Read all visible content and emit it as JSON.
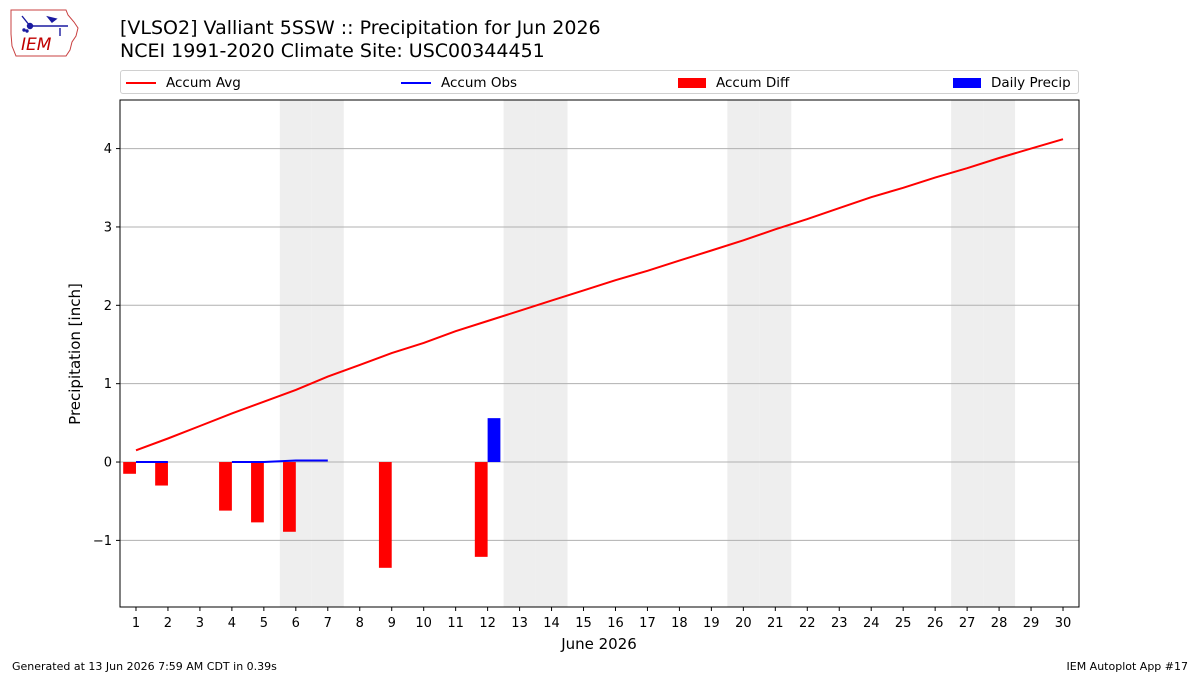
{
  "header": {
    "title_line1": "[VLSO2] Valliant 5SSW :: Precipitation for Jun 2026",
    "title_line2": "NCEI 1991-2020 Climate Site: USC00344451",
    "logo_text": "IEM"
  },
  "footer": {
    "generated": "Generated at 13 Jun 2026 7:59 AM CDT in 0.39s",
    "app": "IEM Autoplot App #17"
  },
  "colors": {
    "avg": "#ff0000",
    "obs": "#0000ff",
    "diff": "#ff0000",
    "daily": "#0000ff",
    "weekend": "#eeeeee",
    "grid": "#b0b0b0"
  },
  "chart_data": {
    "type": "bar",
    "xlabel": "June 2026",
    "ylabel": "Precipitation [inch]",
    "xlim": [
      0.5,
      30.5
    ],
    "ylim": [
      -1.85,
      4.62
    ],
    "yticks": [
      -1,
      0,
      1,
      2,
      3,
      4
    ],
    "ytick_labels": [
      "−1",
      "0",
      "1",
      "2",
      "3",
      "4"
    ],
    "x": [
      1,
      2,
      3,
      4,
      5,
      6,
      7,
      8,
      9,
      10,
      11,
      12,
      13,
      14,
      15,
      16,
      17,
      18,
      19,
      20,
      21,
      22,
      23,
      24,
      25,
      26,
      27,
      28,
      29,
      30
    ],
    "weekend_days": [
      6,
      7,
      13,
      14,
      20,
      21,
      27,
      28
    ],
    "grid": "horizontal",
    "legend_position": "top",
    "series": [
      {
        "name": "Accum Avg",
        "kind": "line",
        "x": [
          1,
          2,
          3,
          4,
          5,
          6,
          7,
          8,
          9,
          10,
          11,
          12,
          13,
          14,
          15,
          16,
          17,
          18,
          19,
          20,
          21,
          22,
          23,
          24,
          25,
          26,
          27,
          28,
          29,
          30
        ],
        "values": [
          0.15,
          0.3,
          0.46,
          0.62,
          0.77,
          0.92,
          1.09,
          1.24,
          1.39,
          1.52,
          1.67,
          1.8,
          1.93,
          2.06,
          2.19,
          2.32,
          2.44,
          2.57,
          2.7,
          2.83,
          2.97,
          3.1,
          3.24,
          3.38,
          3.5,
          3.63,
          3.75,
          3.88,
          4.0,
          4.12
        ]
      },
      {
        "name": "Accum Obs",
        "kind": "line",
        "x": [
          1,
          2,
          3,
          4,
          5,
          6,
          7,
          8,
          9,
          10,
          11,
          12
        ],
        "values": [
          0.0,
          0.0,
          null,
          0.0,
          0.0,
          0.02,
          0.02,
          null,
          null,
          null,
          null,
          null
        ]
      },
      {
        "name": "Accum Diff",
        "kind": "bar",
        "x": [
          1,
          2,
          4,
          5,
          6,
          9,
          12
        ],
        "values": [
          -0.15,
          -0.3,
          -0.62,
          -0.77,
          -0.89,
          -1.35,
          -1.21
        ]
      },
      {
        "name": "Daily Precip",
        "kind": "bar",
        "x": [
          12
        ],
        "values": [
          0.56
        ]
      }
    ]
  }
}
